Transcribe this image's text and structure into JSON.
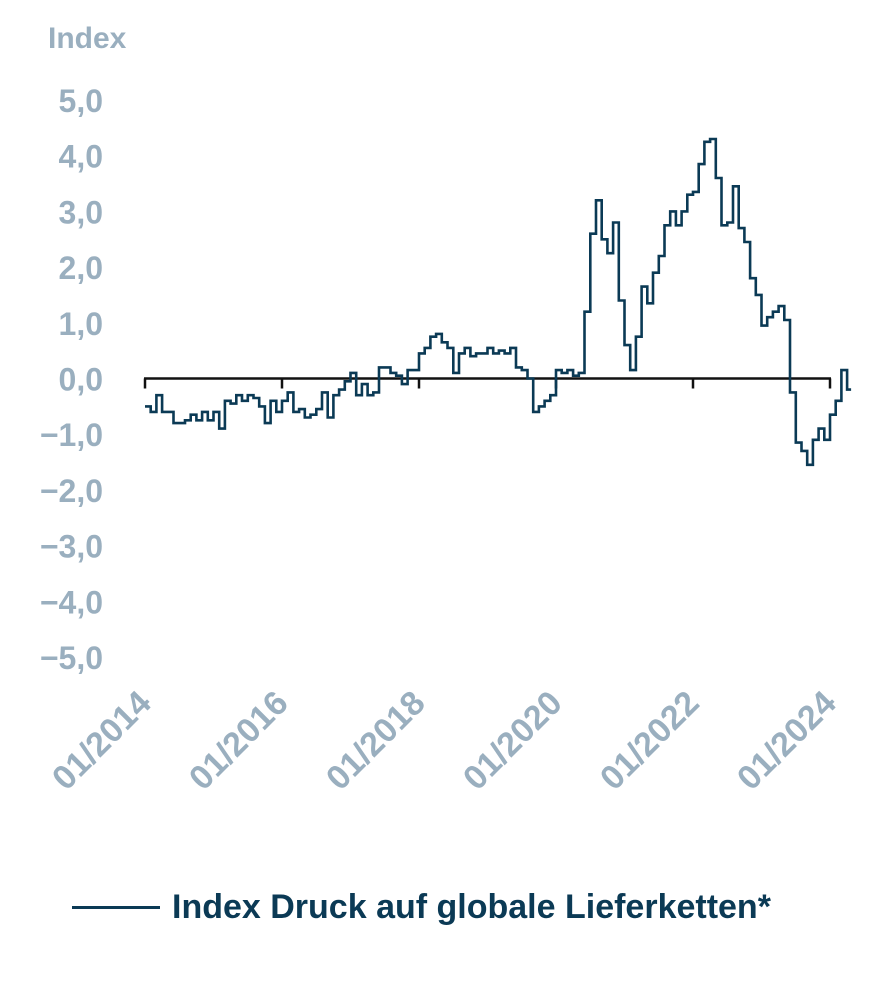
{
  "colors": {
    "line": "#0b3a55",
    "axis_text": "#9aafbf",
    "zero_line": "#111111"
  },
  "chart_data": {
    "type": "line",
    "ylabel": "Index",
    "ylim": [
      -5,
      5
    ],
    "yticks": [
      "5,0",
      "4,0",
      "3,0",
      "2,0",
      "1,0",
      "0,0",
      "−1,0",
      "−2,0",
      "−3,0",
      "−4,0",
      "−5,0"
    ],
    "ytick_values": [
      5,
      4,
      3,
      2,
      1,
      0,
      -1,
      -2,
      -3,
      -4,
      -5
    ],
    "x_labels": [
      "01/2014",
      "01/2016",
      "01/2018",
      "01/2020",
      "01/2022",
      "01/2024"
    ],
    "x_label_dates": [
      "2014-01",
      "2016-01",
      "2018-01",
      "2020-01",
      "2022-01",
      "2024-01"
    ],
    "xlim": [
      "2014-01",
      "2024-01"
    ],
    "legend": "top-left below chart",
    "series": [
      {
        "name": "Index Druck auf globale Lieferketten*",
        "points": [
          [
            "2014-01",
            -0.5
          ],
          [
            "2014-02",
            -0.6
          ],
          [
            "2014-03",
            -0.3
          ],
          [
            "2014-04",
            -0.6
          ],
          [
            "2014-05",
            -0.6
          ],
          [
            "2014-06",
            -0.8
          ],
          [
            "2014-07",
            -0.8
          ],
          [
            "2014-08",
            -0.75
          ],
          [
            "2014-09",
            -0.65
          ],
          [
            "2014-10",
            -0.75
          ],
          [
            "2014-11",
            -0.6
          ],
          [
            "2014-12",
            -0.75
          ],
          [
            "2015-01",
            -0.6
          ],
          [
            "2015-02",
            -0.9
          ],
          [
            "2015-03",
            -0.4
          ],
          [
            "2015-04",
            -0.45
          ],
          [
            "2015-05",
            -0.3
          ],
          [
            "2015-06",
            -0.4
          ],
          [
            "2015-07",
            -0.3
          ],
          [
            "2015-08",
            -0.35
          ],
          [
            "2015-09",
            -0.5
          ],
          [
            "2015-10",
            -0.8
          ],
          [
            "2015-11",
            -0.4
          ],
          [
            "2015-12",
            -0.6
          ],
          [
            "2016-01",
            -0.4
          ],
          [
            "2016-02",
            -0.25
          ],
          [
            "2016-03",
            -0.6
          ],
          [
            "2016-04",
            -0.55
          ],
          [
            "2016-05",
            -0.7
          ],
          [
            "2016-06",
            -0.65
          ],
          [
            "2016-07",
            -0.55
          ],
          [
            "2016-08",
            -0.25
          ],
          [
            "2016-09",
            -0.7
          ],
          [
            "2016-10",
            -0.3
          ],
          [
            "2016-11",
            -0.2
          ],
          [
            "2016-12",
            -0.05
          ],
          [
            "2017-01",
            0.1
          ],
          [
            "2017-02",
            -0.3
          ],
          [
            "2017-03",
            -0.1
          ],
          [
            "2017-04",
            -0.3
          ],
          [
            "2017-05",
            -0.25
          ],
          [
            "2017-06",
            0.2
          ],
          [
            "2017-07",
            0.2
          ],
          [
            "2017-08",
            0.1
          ],
          [
            "2017-09",
            0.05
          ],
          [
            "2017-10",
            -0.1
          ],
          [
            "2017-11",
            0.15
          ],
          [
            "2017-12",
            0.15
          ],
          [
            "2018-01",
            0.45
          ],
          [
            "2018-02",
            0.55
          ],
          [
            "2018-03",
            0.75
          ],
          [
            "2018-04",
            0.8
          ],
          [
            "2018-05",
            0.65
          ],
          [
            "2018-06",
            0.55
          ],
          [
            "2018-07",
            0.1
          ],
          [
            "2018-08",
            0.45
          ],
          [
            "2018-09",
            0.55
          ],
          [
            "2018-10",
            0.4
          ],
          [
            "2018-11",
            0.45
          ],
          [
            "2018-12",
            0.45
          ],
          [
            "2019-01",
            0.55
          ],
          [
            "2019-02",
            0.45
          ],
          [
            "2019-03",
            0.5
          ],
          [
            "2019-04",
            0.45
          ],
          [
            "2019-05",
            0.55
          ],
          [
            "2019-06",
            0.2
          ],
          [
            "2019-07",
            0.15
          ],
          [
            "2019-08",
            0.0
          ],
          [
            "2019-09",
            -0.6
          ],
          [
            "2019-10",
            -0.5
          ],
          [
            "2019-11",
            -0.4
          ],
          [
            "2019-12",
            -0.3
          ],
          [
            "2020-01",
            0.15
          ],
          [
            "2020-02",
            0.1
          ],
          [
            "2020-03",
            0.15
          ],
          [
            "2020-04",
            0.05
          ],
          [
            "2020-05",
            0.1
          ],
          [
            "2020-06",
            1.2
          ],
          [
            "2020-07",
            2.6
          ],
          [
            "2020-08",
            3.2
          ],
          [
            "2020-09",
            2.5
          ],
          [
            "2020-10",
            2.25
          ],
          [
            "2020-11",
            2.8
          ],
          [
            "2020-12",
            1.4
          ],
          [
            "2021-01",
            0.6
          ],
          [
            "2021-02",
            0.15
          ],
          [
            "2021-03",
            0.75
          ],
          [
            "2021-04",
            1.65
          ],
          [
            "2021-05",
            1.35
          ],
          [
            "2021-06",
            1.9
          ],
          [
            "2021-07",
            2.2
          ],
          [
            "2021-08",
            2.75
          ],
          [
            "2021-09",
            3.0
          ],
          [
            "2021-10",
            2.75
          ],
          [
            "2021-11",
            3.0
          ],
          [
            "2021-12",
            3.3
          ],
          [
            "2022-01",
            3.35
          ],
          [
            "2022-02",
            3.85
          ],
          [
            "2022-03",
            4.25
          ],
          [
            "2022-04",
            4.3
          ],
          [
            "2022-05",
            3.6
          ],
          [
            "2022-06",
            2.75
          ],
          [
            "2022-07",
            2.8
          ],
          [
            "2022-08",
            3.45
          ],
          [
            "2022-09",
            2.7
          ],
          [
            "2022-10",
            2.45
          ],
          [
            "2022-11",
            1.8
          ],
          [
            "2022-12",
            1.5
          ],
          [
            "2023-01",
            0.95
          ],
          [
            "2023-02",
            1.1
          ],
          [
            "2023-03",
            1.2
          ],
          [
            "2023-04",
            1.3
          ],
          [
            "2023-05",
            1.05
          ],
          [
            "2023-06",
            -0.25
          ],
          [
            "2023-07",
            -1.15
          ],
          [
            "2023-08",
            -1.3
          ],
          [
            "2023-09",
            -1.55
          ],
          [
            "2023-10",
            -1.1
          ],
          [
            "2023-11",
            -0.9
          ],
          [
            "2023-12",
            -1.1
          ],
          [
            "2024-01",
            -0.65
          ],
          [
            "2024-02",
            -0.4
          ],
          [
            "2024-03",
            0.15
          ],
          [
            "2024-04",
            -0.2
          ]
        ]
      }
    ]
  }
}
